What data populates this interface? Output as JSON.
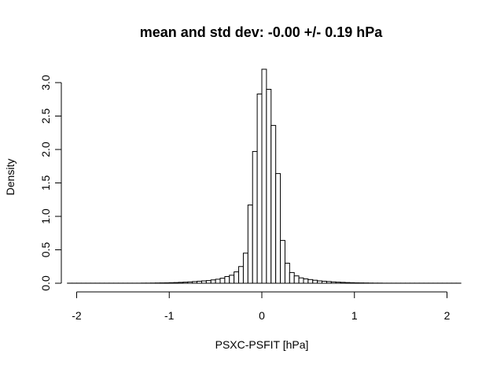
{
  "chart_data": {
    "type": "bar",
    "title": "mean and std dev: -0.00 +/- 0.19 hPa",
    "xlabel": "PSXC-PSFIT [hPa]",
    "ylabel": "Density",
    "xlim": [
      -2.2,
      2.2
    ],
    "ylim": [
      0,
      3.2
    ],
    "grid": false,
    "legend": "none",
    "bar_fill": "#ffffff",
    "bar_stroke": "#000000",
    "x_ticks": [
      -2,
      -1,
      0,
      1,
      2
    ],
    "x_tick_labels": [
      "-2",
      "-1",
      "0",
      "1",
      "2"
    ],
    "y_ticks": [
      0,
      0.5,
      1,
      1.5,
      2,
      2.5,
      3
    ],
    "y_tick_labels": [
      "0.0",
      "0.5",
      "1.0",
      "1.5",
      "2.0",
      "2.5",
      "3.0"
    ],
    "bin_width": 0.05,
    "bins": [
      {
        "start": -2.1,
        "value": 0.001
      },
      {
        "start": -2.05,
        "value": 0.001
      },
      {
        "start": -2.0,
        "value": 0.001
      },
      {
        "start": -1.95,
        "value": 0.001
      },
      {
        "start": -1.9,
        "value": 0.001
      },
      {
        "start": -1.85,
        "value": 0.001
      },
      {
        "start": -1.8,
        "value": 0.001
      },
      {
        "start": -1.75,
        "value": 0.001
      },
      {
        "start": -1.7,
        "value": 0.001
      },
      {
        "start": -1.65,
        "value": 0.001
      },
      {
        "start": -1.6,
        "value": 0.001
      },
      {
        "start": -1.55,
        "value": 0.001
      },
      {
        "start": -1.5,
        "value": 0.001
      },
      {
        "start": -1.45,
        "value": 0.001
      },
      {
        "start": -1.4,
        "value": 0.001
      },
      {
        "start": -1.35,
        "value": 0.001
      },
      {
        "start": -1.3,
        "value": 0.002
      },
      {
        "start": -1.25,
        "value": 0.002
      },
      {
        "start": -1.2,
        "value": 0.003
      },
      {
        "start": -1.15,
        "value": 0.004
      },
      {
        "start": -1.1,
        "value": 0.005
      },
      {
        "start": -1.05,
        "value": 0.006
      },
      {
        "start": -1.0,
        "value": 0.008
      },
      {
        "start": -0.95,
        "value": 0.01
      },
      {
        "start": -0.9,
        "value": 0.013
      },
      {
        "start": -0.85,
        "value": 0.016
      },
      {
        "start": -0.8,
        "value": 0.02
      },
      {
        "start": -0.75,
        "value": 0.025
      },
      {
        "start": -0.7,
        "value": 0.03
      },
      {
        "start": -0.65,
        "value": 0.035
      },
      {
        "start": -0.6,
        "value": 0.04
      },
      {
        "start": -0.55,
        "value": 0.05
      },
      {
        "start": -0.5,
        "value": 0.06
      },
      {
        "start": -0.45,
        "value": 0.075
      },
      {
        "start": -0.4,
        "value": 0.1
      },
      {
        "start": -0.35,
        "value": 0.12
      },
      {
        "start": -0.3,
        "value": 0.17
      },
      {
        "start": -0.25,
        "value": 0.25
      },
      {
        "start": -0.2,
        "value": 0.45
      },
      {
        "start": -0.15,
        "value": 1.17
      },
      {
        "start": -0.1,
        "value": 1.97
      },
      {
        "start": -0.05,
        "value": 2.83
      },
      {
        "start": 0.0,
        "value": 3.2
      },
      {
        "start": 0.05,
        "value": 2.9
      },
      {
        "start": 0.1,
        "value": 2.36
      },
      {
        "start": 0.15,
        "value": 1.64
      },
      {
        "start": 0.2,
        "value": 0.64
      },
      {
        "start": 0.25,
        "value": 0.3
      },
      {
        "start": 0.3,
        "value": 0.16
      },
      {
        "start": 0.35,
        "value": 0.11
      },
      {
        "start": 0.4,
        "value": 0.08
      },
      {
        "start": 0.45,
        "value": 0.065
      },
      {
        "start": 0.5,
        "value": 0.055
      },
      {
        "start": 0.55,
        "value": 0.045
      },
      {
        "start": 0.6,
        "value": 0.035
      },
      {
        "start": 0.65,
        "value": 0.03
      },
      {
        "start": 0.7,
        "value": 0.025
      },
      {
        "start": 0.75,
        "value": 0.02
      },
      {
        "start": 0.8,
        "value": 0.016
      },
      {
        "start": 0.85,
        "value": 0.013
      },
      {
        "start": 0.9,
        "value": 0.01
      },
      {
        "start": 0.95,
        "value": 0.008
      },
      {
        "start": 1.0,
        "value": 0.006
      },
      {
        "start": 1.05,
        "value": 0.005
      },
      {
        "start": 1.1,
        "value": 0.004
      },
      {
        "start": 1.15,
        "value": 0.003
      },
      {
        "start": 1.2,
        "value": 0.002
      },
      {
        "start": 1.25,
        "value": 0.002
      },
      {
        "start": 1.3,
        "value": 0.001
      },
      {
        "start": 1.35,
        "value": 0.001
      },
      {
        "start": 1.4,
        "value": 0.001
      },
      {
        "start": 1.45,
        "value": 0.001
      },
      {
        "start": 1.5,
        "value": 0.001
      },
      {
        "start": 1.55,
        "value": 0.001
      },
      {
        "start": 1.6,
        "value": 0.001
      },
      {
        "start": 1.65,
        "value": 0.001
      },
      {
        "start": 1.7,
        "value": 0.001
      },
      {
        "start": 1.75,
        "value": 0.001
      },
      {
        "start": 1.8,
        "value": 0.001
      },
      {
        "start": 1.85,
        "value": 0.001
      },
      {
        "start": 1.9,
        "value": 0.001
      },
      {
        "start": 1.95,
        "value": 0.001
      },
      {
        "start": 2.0,
        "value": 0.001
      },
      {
        "start": 2.05,
        "value": 0.001
      },
      {
        "start": 2.1,
        "value": 0.001
      }
    ]
  }
}
